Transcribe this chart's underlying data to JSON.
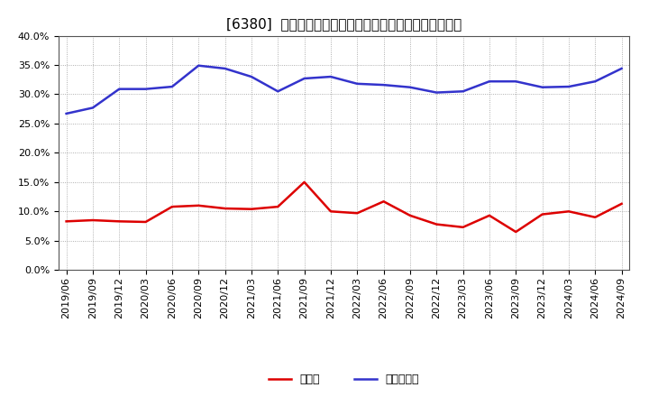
{
  "title": "[6380]  現預金、有利子負債の総資産に対する比率の推移",
  "ylim": [
    0.0,
    0.4
  ],
  "yticks": [
    0.0,
    0.05,
    0.1,
    0.15,
    0.2,
    0.25,
    0.3,
    0.35,
    0.4
  ],
  "dates": [
    "2019/06",
    "2019/09",
    "2019/12",
    "2020/03",
    "2020/06",
    "2020/09",
    "2020/12",
    "2021/03",
    "2021/06",
    "2021/09",
    "2021/12",
    "2022/03",
    "2022/06",
    "2022/09",
    "2022/12",
    "2023/03",
    "2023/06",
    "2023/09",
    "2023/12",
    "2024/03",
    "2024/06",
    "2024/09"
  ],
  "cash": [
    0.083,
    0.085,
    0.083,
    0.082,
    0.108,
    0.11,
    0.105,
    0.104,
    0.108,
    0.15,
    0.1,
    0.097,
    0.117,
    0.093,
    0.078,
    0.073,
    0.093,
    0.065,
    0.095,
    0.1,
    0.09,
    0.113
  ],
  "debt": [
    0.267,
    0.277,
    0.309,
    0.309,
    0.313,
    0.349,
    0.344,
    0.33,
    0.305,
    0.327,
    0.33,
    0.318,
    0.316,
    0.312,
    0.303,
    0.305,
    0.322,
    0.322,
    0.312,
    0.313,
    0.322,
    0.344
  ],
  "cash_color": "#dd0000",
  "debt_color": "#3333cc",
  "background_color": "#ffffff",
  "plot_bg_color": "#ffffff",
  "grid_color": "#999999",
  "legend_cash": "現預金",
  "legend_debt": "有利子負債",
  "title_fontsize": 11,
  "tick_fontsize": 8,
  "legend_fontsize": 9,
  "line_width": 1.8
}
